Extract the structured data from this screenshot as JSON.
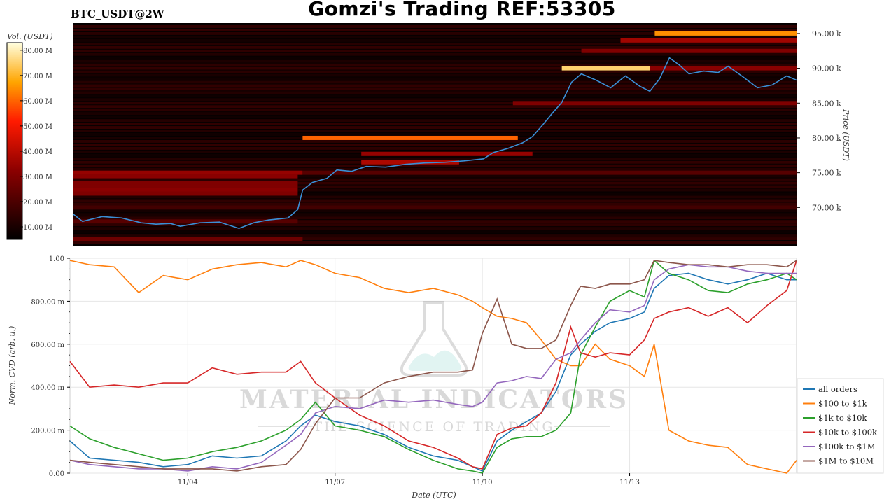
{
  "header": {
    "title": "Gomzi's Trading REF:53305",
    "pair": "BTC_USDT@2W"
  },
  "watermark": {
    "brand": "MATERIAL INDICATORS",
    "tagline": "THE SCIENCE OF TRADING"
  },
  "chart_data": [
    {
      "type": "heatmap",
      "title": "",
      "colorbar": {
        "label": "Vol. (USDT)",
        "ticks": [
          "10.00 M",
          "20.00 M",
          "30.00 M",
          "40.00 M",
          "50.00 M",
          "60.00 M",
          "70.00 M",
          "80.00 M"
        ],
        "range": [
          5,
          83
        ]
      },
      "ylabel": "Price (USDT)",
      "ylim": [
        64500,
        96500
      ],
      "yticks": [
        {
          "value": 70000,
          "label": "70.00 k"
        },
        {
          "value": 75000,
          "label": "75.00 k"
        },
        {
          "value": 80000,
          "label": "80.00 k"
        },
        {
          "value": 85000,
          "label": "85.00 k"
        },
        {
          "value": 90000,
          "label": "90.00 k"
        },
        {
          "value": 95000,
          "label": "95.00 k"
        }
      ],
      "xlim": [
        1.6,
        16.4
      ],
      "price_series": {
        "x": [
          1.6,
          1.8,
          2.2,
          2.6,
          3.0,
          3.3,
          3.6,
          3.8,
          4.2,
          4.6,
          5.0,
          5.3,
          5.6,
          6.0,
          6.2,
          6.3,
          6.5,
          6.8,
          7.0,
          7.3,
          7.6,
          8.0,
          8.4,
          8.8,
          9.2,
          9.6,
          10.0,
          10.2,
          10.5,
          10.8,
          11.0,
          11.2,
          11.4,
          11.6,
          11.8,
          12.0,
          12.3,
          12.6,
          12.9,
          13.2,
          13.4,
          13.5,
          13.6,
          13.8,
          14.0,
          14.2,
          14.5,
          14.8,
          15.0,
          15.3,
          15.6,
          15.9,
          16.2,
          16.4
        ],
        "y": [
          69100,
          68000,
          68700,
          68500,
          67800,
          67600,
          67700,
          67300,
          67800,
          67900,
          67000,
          67800,
          68200,
          68500,
          69700,
          72500,
          73600,
          74200,
          75400,
          75200,
          75900,
          75800,
          76200,
          76400,
          76500,
          76700,
          77000,
          77900,
          78500,
          79300,
          80200,
          81800,
          83500,
          85100,
          88000,
          89200,
          88300,
          87200,
          88900,
          87400,
          86700,
          87600,
          88500,
          91500,
          90500,
          89200,
          89600,
          89400,
          90300,
          88800,
          87200,
          87600,
          88900,
          88300
        ]
      },
      "liquidity_levels": [
        {
          "price": 95000,
          "x": [
            13.5,
            16.4
          ],
          "value": 65
        },
        {
          "price": 94000,
          "x": [
            12.8,
            16.4
          ],
          "value": 36
        },
        {
          "price": 92500,
          "x": [
            12.0,
            16.4
          ],
          "value": 30
        },
        {
          "price": 90000,
          "x": [
            11.6,
            13.4
          ],
          "value": 75
        },
        {
          "price": 90000,
          "x": [
            13.4,
            16.4
          ],
          "value": 32
        },
        {
          "price": 85000,
          "x": [
            10.6,
            16.4
          ],
          "value": 30
        },
        {
          "price": 80000,
          "x": [
            6.3,
            10.7
          ],
          "value": 60
        },
        {
          "price": 77700,
          "x": [
            7.5,
            11.0
          ],
          "value": 34
        },
        {
          "price": 76500,
          "x": [
            7.5,
            9.5
          ],
          "value": 38
        },
        {
          "price": 75000,
          "x": [
            1.6,
            6.3
          ],
          "value": 34
        },
        {
          "price": 75000,
          "x": [
            6.3,
            16.4
          ],
          "value": 22
        },
        {
          "price": 74500,
          "x": [
            1.6,
            6.2
          ],
          "value": 32
        },
        {
          "price": 73500,
          "x": [
            1.6,
            6.2
          ],
          "value": 30
        },
        {
          "price": 73000,
          "x": [
            1.6,
            6.2
          ],
          "value": 30
        },
        {
          "price": 72500,
          "x": [
            1.6,
            6.2
          ],
          "value": 32
        },
        {
          "price": 72000,
          "x": [
            1.6,
            6.2
          ],
          "value": 30
        },
        {
          "price": 70000,
          "x": [
            1.6,
            16.4
          ],
          "value": 18
        },
        {
          "price": 68000,
          "x": [
            1.6,
            6.2
          ],
          "value": 22
        },
        {
          "price": 65500,
          "x": [
            1.6,
            6.3
          ],
          "value": 26
        }
      ]
    },
    {
      "type": "line",
      "title": "",
      "xlabel": "Date (UTC)",
      "ylabel": "Norm. CVD (arb. u.)",
      "xlim": [
        1.6,
        16.4
      ],
      "ylim": [
        0,
        1
      ],
      "xticks": [
        {
          "value": 4,
          "label": "11/04"
        },
        {
          "value": 7,
          "label": "11/07"
        },
        {
          "value": 10,
          "label": "11/10"
        },
        {
          "value": 13,
          "label": "11/13"
        }
      ],
      "yticks": [
        {
          "value": 0,
          "label": "0.00"
        },
        {
          "value": 0.2,
          "label": "200.00 m"
        },
        {
          "value": 0.4,
          "label": "400.00 m"
        },
        {
          "value": 0.6,
          "label": "600.00 m"
        },
        {
          "value": 0.8,
          "label": "800.00 m"
        },
        {
          "value": 1.0,
          "label": "1.00"
        }
      ],
      "legend_position": "right",
      "grid": true,
      "x": [
        1.6,
        2.0,
        2.5,
        3.0,
        3.5,
        4.0,
        4.5,
        5.0,
        5.5,
        6.0,
        6.3,
        6.6,
        7.0,
        7.5,
        8.0,
        8.5,
        9.0,
        9.5,
        9.8,
        10.0,
        10.3,
        10.6,
        10.9,
        11.2,
        11.5,
        11.8,
        12.0,
        12.3,
        12.6,
        13.0,
        13.3,
        13.5,
        13.8,
        14.2,
        14.6,
        15.0,
        15.4,
        15.8,
        16.2,
        16.4
      ],
      "series": [
        {
          "name": "all orders",
          "color": "#1f77b4",
          "values": [
            0.15,
            0.07,
            0.06,
            0.05,
            0.03,
            0.04,
            0.08,
            0.07,
            0.08,
            0.15,
            0.22,
            0.27,
            0.24,
            0.22,
            0.18,
            0.12,
            0.08,
            0.06,
            0.03,
            0.01,
            0.15,
            0.2,
            0.24,
            0.28,
            0.38,
            0.55,
            0.6,
            0.66,
            0.7,
            0.72,
            0.75,
            0.86,
            0.92,
            0.93,
            0.9,
            0.88,
            0.9,
            0.93,
            0.9,
            0.9
          ]
        },
        {
          "name": "$100 to $1k",
          "color": "#ff7f0e",
          "values": [
            0.99,
            0.97,
            0.96,
            0.84,
            0.92,
            0.9,
            0.95,
            0.97,
            0.98,
            0.96,
            0.99,
            0.97,
            0.93,
            0.91,
            0.86,
            0.84,
            0.86,
            0.83,
            0.8,
            0.77,
            0.73,
            0.72,
            0.7,
            0.62,
            0.53,
            0.5,
            0.5,
            0.6,
            0.53,
            0.5,
            0.45,
            0.6,
            0.2,
            0.15,
            0.13,
            0.12,
            0.04,
            0.02,
            0.0,
            0.06
          ]
        },
        {
          "name": "$1k to $10k",
          "color": "#2ca02c",
          "values": [
            0.22,
            0.16,
            0.12,
            0.09,
            0.06,
            0.07,
            0.1,
            0.12,
            0.15,
            0.2,
            0.25,
            0.33,
            0.22,
            0.2,
            0.17,
            0.11,
            0.06,
            0.02,
            0.01,
            0.0,
            0.12,
            0.16,
            0.17,
            0.17,
            0.2,
            0.28,
            0.55,
            0.68,
            0.8,
            0.85,
            0.82,
            0.99,
            0.93,
            0.9,
            0.85,
            0.84,
            0.88,
            0.9,
            0.93,
            0.9
          ]
        },
        {
          "name": "$10k to $100k",
          "color": "#d62728",
          "values": [
            0.52,
            0.4,
            0.41,
            0.4,
            0.42,
            0.42,
            0.49,
            0.46,
            0.47,
            0.47,
            0.52,
            0.42,
            0.35,
            0.27,
            0.22,
            0.15,
            0.12,
            0.07,
            0.03,
            0.02,
            0.18,
            0.21,
            0.22,
            0.28,
            0.42,
            0.68,
            0.56,
            0.54,
            0.56,
            0.55,
            0.62,
            0.72,
            0.75,
            0.77,
            0.73,
            0.77,
            0.7,
            0.78,
            0.85,
            0.99
          ]
        },
        {
          "name": "$100k to $1M",
          "color": "#9467bd",
          "values": [
            0.06,
            0.04,
            0.03,
            0.02,
            0.02,
            0.01,
            0.03,
            0.02,
            0.05,
            0.13,
            0.18,
            0.28,
            0.31,
            0.3,
            0.34,
            0.33,
            0.34,
            0.32,
            0.31,
            0.33,
            0.42,
            0.43,
            0.45,
            0.44,
            0.53,
            0.56,
            0.62,
            0.7,
            0.76,
            0.75,
            0.78,
            0.9,
            0.95,
            0.97,
            0.96,
            0.96,
            0.94,
            0.93,
            0.93,
            0.93
          ]
        },
        {
          "name": "$1M to $10M",
          "color": "#8c564b",
          "values": [
            0.06,
            0.05,
            0.04,
            0.03,
            0.02,
            0.02,
            0.02,
            0.01,
            0.03,
            0.04,
            0.11,
            0.23,
            0.35,
            0.35,
            0.42,
            0.45,
            0.47,
            0.47,
            0.48,
            0.65,
            0.81,
            0.6,
            0.58,
            0.58,
            0.62,
            0.78,
            0.87,
            0.86,
            0.88,
            0.88,
            0.9,
            0.99,
            0.98,
            0.97,
            0.97,
            0.96,
            0.97,
            0.97,
            0.96,
            0.99
          ]
        }
      ]
    }
  ]
}
